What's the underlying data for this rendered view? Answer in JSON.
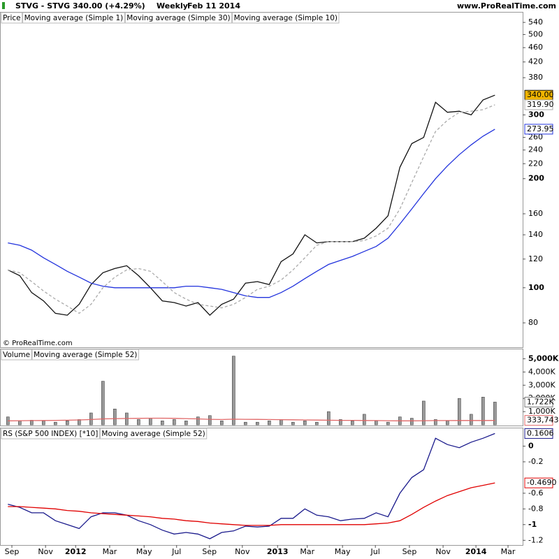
{
  "header": {
    "symbol": "STVG - STVG",
    "quote": "340.00 (+4.29%)",
    "period": "Weekly",
    "date": "Feb 11 2014",
    "site": "www.ProRealTime.com",
    "copyright": "© ProRealTime.com"
  },
  "chart_data": [
    {
      "type": "line",
      "label": "Price",
      "log_scale": true,
      "x": [
        2,
        5,
        8,
        11,
        14,
        17,
        20,
        23,
        26,
        29,
        32,
        35,
        38,
        41,
        44,
        47,
        50,
        53,
        56,
        59,
        62,
        65,
        68,
        71,
        74,
        77,
        80,
        83,
        86,
        89,
        92,
        95,
        98,
        101,
        104,
        107,
        110,
        113,
        116,
        119,
        122,
        125
      ],
      "xlim": [
        0,
        132
      ],
      "ylim": [
        68.5,
        545
      ],
      "yticks": [
        80,
        100,
        120,
        140,
        160,
        200,
        220,
        240,
        260,
        300,
        380,
        420,
        460,
        500,
        540
      ],
      "series": [
        {
          "name": "Moving average (Simple 1)",
          "color": "#111111",
          "last_label": "340.00",
          "values": [
            112,
            108,
            97,
            92,
            85,
            84,
            90,
            102,
            110,
            113,
            115,
            108,
            100,
            92,
            91,
            89,
            91,
            84,
            90,
            93,
            103,
            104,
            102,
            118,
            124,
            140,
            133,
            134,
            134,
            134,
            137,
            146,
            158,
            215,
            250,
            260,
            325,
            305,
            307,
            300,
            330,
            340
          ]
        },
        {
          "name": "Moving average (Simple 30)",
          "color": "#2233dd",
          "last_label": "273.95",
          "values": [
            133,
            131,
            127,
            121,
            116,
            111,
            107,
            103,
            101,
            100,
            100,
            100,
            100,
            100,
            100,
            101,
            101,
            100,
            99,
            97,
            95,
            94,
            94,
            97,
            101,
            106,
            111,
            116,
            119,
            122,
            126,
            130,
            137,
            150,
            165,
            182,
            200,
            217,
            233,
            248,
            262,
            273.95
          ]
        },
        {
          "name": "Moving average (Simple 10)",
          "color": "#aaaaaa",
          "dashed": true,
          "last_label": "319.90",
          "values": [
            112,
            110,
            104,
            98,
            93,
            89,
            85,
            90,
            100,
            107,
            112,
            113,
            111,
            104,
            97,
            93,
            90,
            89,
            88,
            90,
            94,
            99,
            101,
            105,
            112,
            121,
            131,
            134,
            134,
            134,
            135,
            139,
            146,
            165,
            195,
            230,
            270,
            290,
            305,
            307,
            310,
            319.9
          ]
        }
      ]
    },
    {
      "type": "bar",
      "label": "Volume",
      "x": [
        2,
        5,
        8,
        11,
        14,
        17,
        20,
        23,
        26,
        29,
        32,
        35,
        38,
        41,
        44,
        47,
        50,
        53,
        56,
        59,
        62,
        65,
        68,
        71,
        74,
        77,
        80,
        83,
        86,
        89,
        92,
        95,
        98,
        101,
        104,
        107,
        110,
        113,
        116,
        119,
        122,
        125
      ],
      "xlim": [
        0,
        132
      ],
      "ylim": [
        0,
        5500
      ],
      "yticks": [
        {
          "value": 1000,
          "label": "1,000K"
        },
        {
          "value": 2000,
          "label": "2,000K"
        },
        {
          "value": 3000,
          "label": "3,000K"
        },
        {
          "value": 4000,
          "label": "4,000K"
        },
        {
          "value": 5000,
          "label": "5,000K"
        }
      ],
      "color": "#9a9a9a",
      "last_label": "1,722K",
      "values": [
        600,
        300,
        350,
        300,
        200,
        300,
        400,
        900,
        3300,
        1200,
        900,
        400,
        500,
        300,
        400,
        300,
        600,
        700,
        300,
        5200,
        200,
        200,
        300,
        400,
        200,
        300,
        200,
        1000,
        400,
        300,
        800,
        300,
        200,
        600,
        500,
        1800,
        400,
        300,
        2000,
        800,
        2100,
        1722
      ],
      "series": [
        {
          "name": "Moving average (Simple 52)",
          "color": "#e06666",
          "last_label": "333,743",
          "values": [
            300,
            310,
            320,
            330,
            340,
            350,
            370,
            400,
            450,
            470,
            480,
            490,
            500,
            500,
            490,
            470,
            450,
            420,
            400,
            430,
            420,
            410,
            400,
            390,
            380,
            370,
            360,
            350,
            340,
            340,
            330,
            320,
            310,
            300,
            300,
            310,
            320,
            320,
            330,
            330,
            330,
            333.743
          ]
        }
      ]
    },
    {
      "type": "line",
      "label": "RS (S&P 500 INDEX) [*10]",
      "x": [
        2,
        5,
        8,
        11,
        14,
        17,
        20,
        23,
        26,
        29,
        32,
        35,
        38,
        41,
        44,
        47,
        50,
        53,
        56,
        59,
        62,
        65,
        68,
        71,
        74,
        77,
        80,
        83,
        86,
        89,
        92,
        95,
        98,
        101,
        104,
        107,
        110,
        113,
        116,
        119,
        122,
        125
      ],
      "xlim": [
        0,
        132
      ],
      "ylim": [
        -1.26,
        0.2
      ],
      "yticks": [
        -1.2,
        -1,
        -0.8,
        -0.6,
        -0.2,
        0
      ],
      "xticks": [
        {
          "value": 3,
          "label": "Sep"
        },
        {
          "value": 11.5,
          "label": "Nov"
        },
        {
          "value": 19.1,
          "label": "2012"
        },
        {
          "value": 27.7,
          "label": "Mar"
        },
        {
          "value": 36.4,
          "label": "May"
        },
        {
          "value": 44.6,
          "label": "Jul"
        },
        {
          "value": 52.9,
          "label": "Sep"
        },
        {
          "value": 61.2,
          "label": "Nov"
        },
        {
          "value": 70.1,
          "label": "2013"
        },
        {
          "value": 77.6,
          "label": "Mar"
        },
        {
          "value": 86.5,
          "label": "May"
        },
        {
          "value": 94.8,
          "label": "Jul"
        },
        {
          "value": 103.4,
          "label": "Sep"
        },
        {
          "value": 111.9,
          "label": "Nov"
        },
        {
          "value": 120.2,
          "label": "2014"
        },
        {
          "value": 128.3,
          "label": "Mar"
        }
      ],
      "series": [
        {
          "name": "RS (S&P 500 INDEX) [*10]",
          "color": "#1a1a8c",
          "last_label": "0.1606",
          "values": [
            -0.74,
            -0.78,
            -0.85,
            -0.85,
            -0.95,
            -1,
            -1.05,
            -0.9,
            -0.85,
            -0.85,
            -0.88,
            -0.95,
            -1,
            -1.07,
            -1.12,
            -1.1,
            -1.12,
            -1.18,
            -1.1,
            -1.08,
            -1.02,
            -1.03,
            -1.02,
            -0.92,
            -0.92,
            -0.8,
            -0.88,
            -0.9,
            -0.95,
            -0.93,
            -0.92,
            -0.85,
            -0.9,
            -0.6,
            -0.4,
            -0.3,
            0.1,
            0.02,
            -0.02,
            0.05,
            0.1,
            0.1606
          ]
        },
        {
          "name": "Moving average (Simple 52)",
          "color": "#e00000",
          "last_label": "-0.4690",
          "values": [
            -0.77,
            -0.77,
            -0.78,
            -0.79,
            -0.8,
            -0.82,
            -0.83,
            -0.85,
            -0.86,
            -0.87,
            -0.88,
            -0.89,
            -0.9,
            -0.92,
            -0.93,
            -0.95,
            -0.96,
            -0.98,
            -0.99,
            -1,
            -1.01,
            -1.01,
            -1.01,
            -1,
            -1,
            -1,
            -1,
            -1,
            -1,
            -1,
            -1,
            -0.99,
            -0.98,
            -0.95,
            -0.87,
            -0.78,
            -0.7,
            -0.63,
            -0.58,
            -0.53,
            -0.5,
            -0.469
          ]
        }
      ]
    }
  ]
}
